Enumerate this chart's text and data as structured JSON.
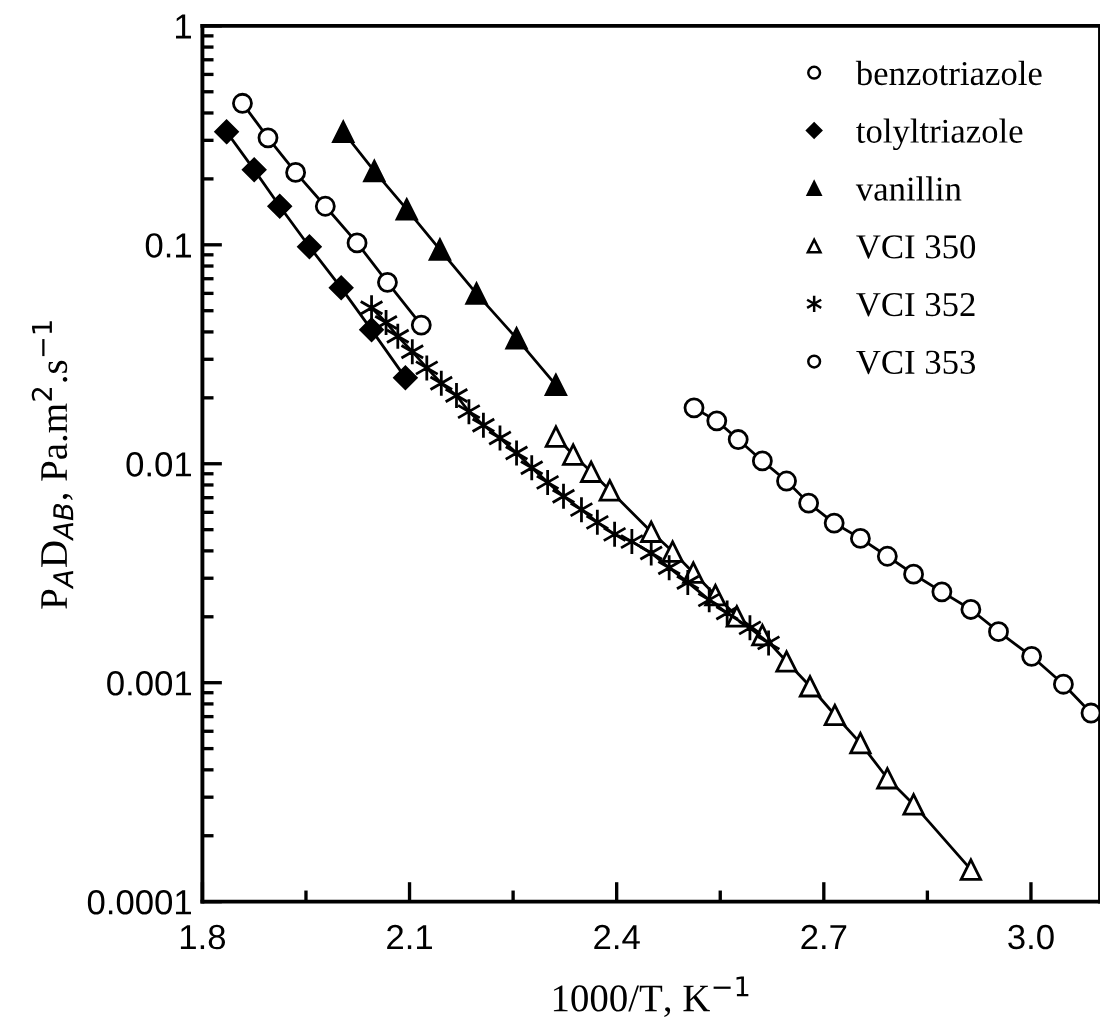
{
  "chart_data": {
    "type": "line",
    "xlabel": "1000/T, K$^{−1}$",
    "ylabel": "P$_{A}$D$_{AB}$, Pa.m$^{2}$.s$^{−1}$",
    "log": "y",
    "xlim": [
      1.8,
      3.1
    ],
    "xticks": [
      1.8,
      2.1,
      2.4,
      2.7,
      {
        "value": 3.0,
        "label": "3.0"
      }
    ],
    "ylim": [
      0.0001,
      1
    ],
    "yticks": [
      0.0001,
      0.001,
      0.01,
      0.1,
      1
    ],
    "grid": false,
    "legend": "top right",
    "line_style": "solid",
    "series": [
      {
        "name": "benzotriazole",
        "marker": "circle",
        "color": "#ffffff",
        "x": [
          1.858,
          1.895,
          1.935,
          1.978,
          2.024,
          2.068,
          2.117
        ],
        "values": [
          0.443,
          0.308,
          0.214,
          0.15,
          0.102,
          0.0674,
          0.043
        ]
      },
      {
        "name": "tolyltriazole",
        "marker": "diamond",
        "color": "#000000",
        "x": [
          1.835,
          1.875,
          1.912,
          1.955,
          2.001,
          2.045,
          2.094
        ],
        "values": [
          0.328,
          0.22,
          0.15,
          0.098,
          0.0636,
          0.0409,
          0.0247
        ]
      },
      {
        "name": "vanillin",
        "marker": "triangle",
        "color": "#000000",
        "x": [
          2.004,
          2.049,
          2.096,
          2.144,
          2.197,
          2.255,
          2.312
        ],
        "values": [
          0.328,
          0.217,
          0.145,
          0.095,
          0.0598,
          0.0374,
          0.0229
        ]
      },
      {
        "name": "VCI 350",
        "marker": "triangle",
        "color": "#ffffff",
        "x": [
          2.312,
          2.337,
          2.363,
          2.39,
          2.45,
          2.481,
          2.511,
          2.543,
          2.574,
          2.611,
          2.646,
          2.68,
          2.716,
          2.753,
          2.792,
          2.83,
          2.913
        ],
        "values": [
          0.0133,
          0.011,
          0.00919,
          0.00756,
          0.00489,
          0.00397,
          0.00318,
          0.00251,
          0.00201,
          0.00165,
          0.00125,
          0.000963,
          0.000712,
          0.00053,
          0.000366,
          0.000278,
          0.00014
        ]
      },
      {
        "name": "VCI 352",
        "marker": "cross",
        "color": "#000000",
        "x": [
          2.045,
          2.066,
          2.083,
          2.104,
          2.125,
          2.146,
          2.168,
          2.186,
          2.207,
          2.231,
          2.255,
          2.277,
          2.3,
          2.323,
          2.349,
          2.372,
          2.397,
          2.422,
          2.45,
          2.476,
          2.503,
          2.534,
          2.56,
          2.593,
          2.62
        ],
        "values": [
          0.0516,
          0.0442,
          0.0382,
          0.0325,
          0.0274,
          0.0233,
          0.0205,
          0.0173,
          0.015,
          0.0131,
          0.0112,
          0.00959,
          0.00822,
          0.0071,
          0.00617,
          0.0054,
          0.00476,
          0.00441,
          0.00391,
          0.00335,
          0.00287,
          0.00239,
          0.00208,
          0.00178,
          0.00152
        ]
      },
      {
        "name": "VCI 353",
        "marker": "circle",
        "color": "#ffffff",
        "x": [
          2.512,
          2.545,
          2.576,
          2.611,
          2.646,
          2.678,
          2.715,
          2.753,
          2.792,
          2.83,
          2.871,
          2.913,
          2.953,
          3.001,
          3.047,
          3.087
        ],
        "values": [
          0.018,
          0.0157,
          0.0129,
          0.0103,
          0.00834,
          0.00661,
          0.00536,
          0.00456,
          0.00378,
          0.00313,
          0.0026,
          0.00216,
          0.00171,
          0.00132,
          0.000984,
          0.000727
        ]
      }
    ]
  }
}
